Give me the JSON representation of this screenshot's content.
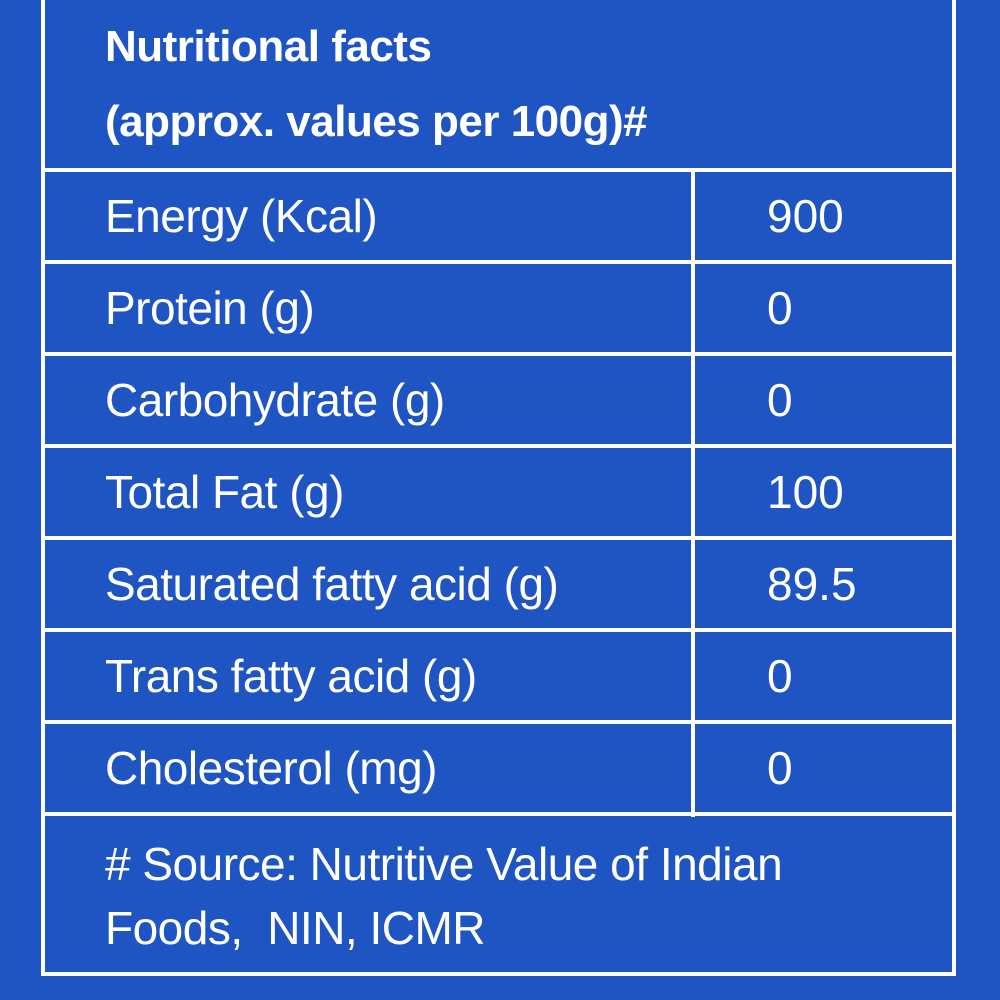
{
  "header": {
    "title": "Nutritional facts",
    "subtitle": "(approx. values per 100g)#"
  },
  "nutrients": [
    {
      "name": "Energy (Kcal)",
      "value": "900"
    },
    {
      "name": "Protein (g)",
      "value": "0"
    },
    {
      "name": "Carbohydrate (g)",
      "value": "0"
    },
    {
      "name": "Total Fat (g)",
      "value": "100"
    },
    {
      "name": "Saturated fatty acid (g)",
      "value": "89.5"
    },
    {
      "name": "Trans fatty acid (g)",
      "value": "0"
    },
    {
      "name": "Cholesterol (mg)",
      "value": "0"
    }
  ],
  "footer": {
    "line1": "# Source: Nutritive Value of Indian",
    "line2": "Foods,  NIN, ICMR"
  },
  "colors": {
    "background": "#1f55c2",
    "text": "#ffffff",
    "border": "#ffffff"
  }
}
